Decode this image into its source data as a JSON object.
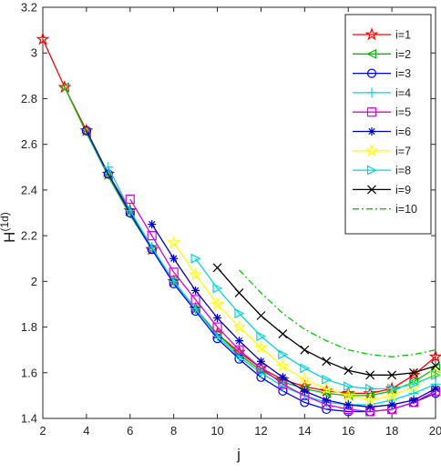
{
  "chart_data": {
    "type": "line",
    "title": "",
    "xlabel": "j",
    "ylabel": "H",
    "ylabel_sup": "(1d)",
    "xlim": [
      2,
      20
    ],
    "ylim": [
      1.4,
      3.2
    ],
    "xticks": [
      2,
      4,
      6,
      8,
      10,
      12,
      14,
      16,
      18,
      20
    ],
    "yticks": [
      1.4,
      1.6,
      1.8,
      2,
      2.2,
      2.4,
      2.6,
      2.8,
      3,
      3.2
    ],
    "grid": false,
    "legend_position": "top-right",
    "series": [
      {
        "name": "i=1",
        "color": "#ff0000",
        "marker": "star",
        "dash": "",
        "x": [
          2,
          3,
          4,
          5,
          6,
          7,
          8,
          9,
          10,
          11,
          12,
          13,
          14,
          15,
          16,
          17,
          18,
          19,
          20
        ],
        "y": [
          3.06,
          2.85,
          2.66,
          2.47,
          2.31,
          2.14,
          2.0,
          1.88,
          1.77,
          1.69,
          1.62,
          1.57,
          1.54,
          1.52,
          1.51,
          1.51,
          1.53,
          1.59,
          1.67
        ]
      },
      {
        "name": "i=2",
        "color": "#00c000",
        "marker": "triangle-left",
        "dash": "",
        "x": [
          3,
          4,
          5,
          6,
          7,
          8,
          9,
          10,
          11,
          12,
          13,
          14,
          15,
          16,
          17,
          18,
          19,
          20
        ],
        "y": [
          2.85,
          2.65,
          2.46,
          2.29,
          2.14,
          2.0,
          1.88,
          1.77,
          1.68,
          1.61,
          1.56,
          1.53,
          1.51,
          1.5,
          1.5,
          1.52,
          1.56,
          1.62
        ]
      },
      {
        "name": "i=3",
        "color": "#0000ff",
        "marker": "circle",
        "dash": "",
        "x": [
          4,
          5,
          6,
          7,
          8,
          9,
          10,
          11,
          12,
          13,
          14,
          15,
          16,
          17,
          18,
          19,
          20
        ],
        "y": [
          2.66,
          2.47,
          2.3,
          2.14,
          1.99,
          1.87,
          1.75,
          1.66,
          1.58,
          1.52,
          1.47,
          1.44,
          1.43,
          1.43,
          1.44,
          1.47,
          1.51
        ]
      },
      {
        "name": "i=4",
        "color": "#00d8d8",
        "marker": "plus",
        "dash": "",
        "x": [
          5,
          6,
          7,
          8,
          9,
          10,
          11,
          12,
          13,
          14,
          15,
          16,
          17,
          18,
          19,
          20
        ],
        "y": [
          2.5,
          2.31,
          2.15,
          2.0,
          1.88,
          1.76,
          1.67,
          1.6,
          1.54,
          1.5,
          1.47,
          1.46,
          1.46,
          1.48,
          1.51,
          1.55
        ]
      },
      {
        "name": "i=5",
        "color": "#e000e0",
        "marker": "square",
        "dash": "",
        "x": [
          6,
          7,
          8,
          9,
          10,
          11,
          12,
          13,
          14,
          15,
          16,
          17,
          18,
          19,
          20
        ],
        "y": [
          2.36,
          2.2,
          2.04,
          1.92,
          1.8,
          1.7,
          1.62,
          1.55,
          1.5,
          1.46,
          1.44,
          1.43,
          1.44,
          1.47,
          1.52
        ]
      },
      {
        "name": "i=6",
        "color": "#0000cc",
        "marker": "asterisk",
        "dash": "",
        "x": [
          7,
          8,
          9,
          10,
          11,
          12,
          13,
          14,
          15,
          16,
          17,
          18,
          19,
          20
        ],
        "y": [
          2.25,
          2.1,
          1.96,
          1.84,
          1.74,
          1.65,
          1.58,
          1.52,
          1.48,
          1.46,
          1.45,
          1.46,
          1.48,
          1.53
        ]
      },
      {
        "name": "i=7",
        "color": "#ffff00",
        "marker": "star",
        "dash": "",
        "x": [
          8,
          9,
          10,
          11,
          12,
          13,
          14,
          15,
          16,
          17,
          18,
          19,
          20
        ],
        "y": [
          2.17,
          2.03,
          1.9,
          1.8,
          1.71,
          1.63,
          1.57,
          1.53,
          1.5,
          1.48,
          1.5,
          1.54,
          1.6
        ]
      },
      {
        "name": "i=8",
        "color": "#00d8d8",
        "marker": "triangle-right",
        "dash": "",
        "x": [
          9,
          10,
          11,
          12,
          13,
          14,
          15,
          16,
          17,
          18,
          19,
          20
        ],
        "y": [
          2.1,
          1.97,
          1.86,
          1.76,
          1.68,
          1.62,
          1.57,
          1.54,
          1.53,
          1.53,
          1.55,
          1.59
        ]
      },
      {
        "name": "i=9",
        "color": "#000000",
        "marker": "x",
        "dash": "",
        "x": [
          10,
          11,
          12,
          13,
          14,
          15,
          16,
          17,
          18,
          19,
          20
        ],
        "y": [
          2.06,
          1.95,
          1.85,
          1.77,
          1.7,
          1.65,
          1.61,
          1.59,
          1.59,
          1.6,
          1.63
        ]
      },
      {
        "name": "i=10",
        "color": "#00cc00",
        "marker": "none",
        "dash": "7 3 2 3",
        "x": [
          11,
          12,
          13,
          14,
          15,
          16,
          17,
          18,
          19,
          20
        ],
        "y": [
          2.05,
          1.95,
          1.86,
          1.79,
          1.74,
          1.7,
          1.68,
          1.67,
          1.68,
          1.7
        ]
      }
    ]
  }
}
